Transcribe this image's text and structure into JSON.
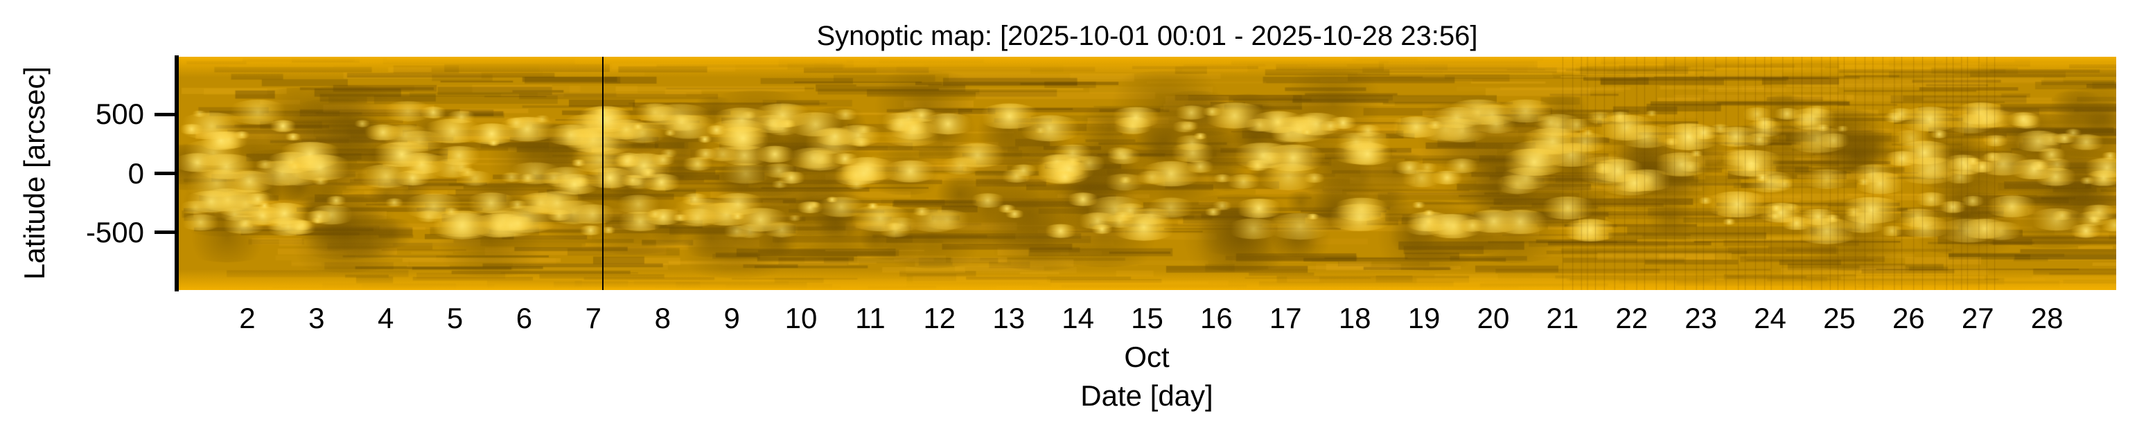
{
  "chart_data": {
    "type": "heatmap",
    "title": "Synoptic map: [2025-10-01 00:01 - 2025-10-28 23:56]",
    "xlabel": "Date [day]",
    "xlabel_sub": "Oct",
    "ylabel": "Latitude [arcsec]",
    "x_range_days": [
      1.0,
      29.0
    ],
    "x_ticks": [
      "2",
      "3",
      "4",
      "5",
      "6",
      "7",
      "8",
      "9",
      "10",
      "11",
      "12",
      "13",
      "14",
      "15",
      "16",
      "17",
      "18",
      "19",
      "20",
      "21",
      "22",
      "23",
      "24",
      "25",
      "26",
      "27",
      "28"
    ],
    "y_ticks": [
      {
        "value": 500,
        "label": "500"
      },
      {
        "value": 0,
        "label": "0"
      },
      {
        "value": -500,
        "label": "-500"
      }
    ],
    "ylim": [
      -990,
      990
    ],
    "marker_line_day": 7.14,
    "colormap": {
      "dark": "#7a5800",
      "mid": "#c08c00",
      "bright": "#ffe060",
      "edge": "#f2b000"
    },
    "grid": false
  }
}
